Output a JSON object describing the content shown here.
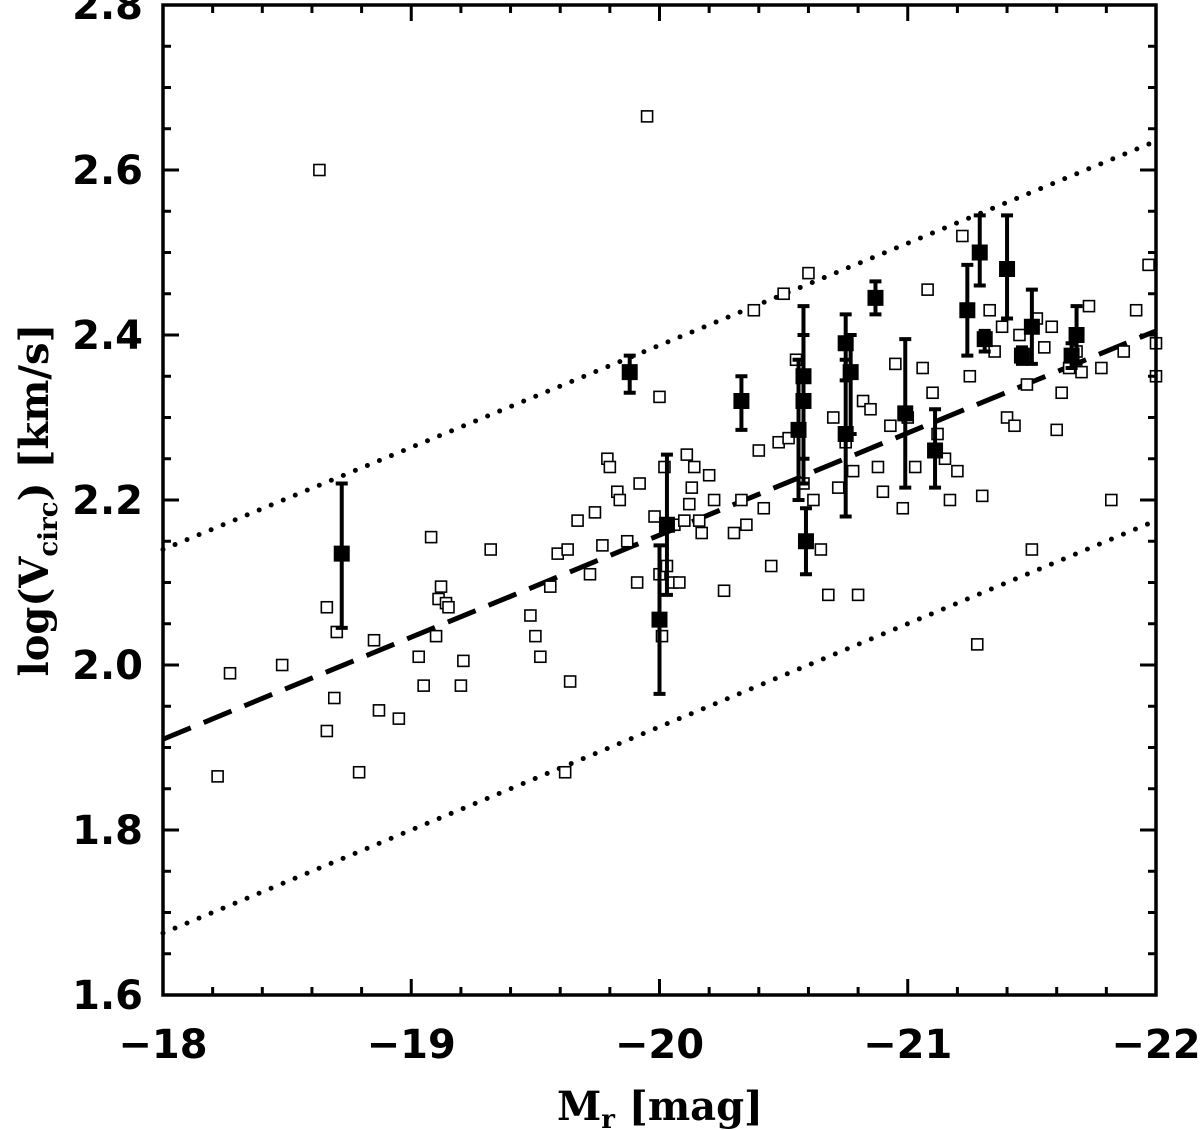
{
  "chart_data": {
    "type": "scatter",
    "title": "",
    "xlabel": {
      "main": "M",
      "sub": "r",
      "rest": " [mag]"
    },
    "ylabel": {
      "pre": "log(V",
      "sub": "circ",
      "post": ")  [km/s]"
    },
    "xlim": [
      -18,
      -22
    ],
    "ylim": [
      1.6,
      2.8
    ],
    "x_ticks": [
      -18,
      -19,
      -20,
      -21,
      -22
    ],
    "x_tick_labels": [
      "−18",
      "−19",
      "−20",
      "−21",
      "−22"
    ],
    "y_ticks": [
      1.6,
      1.8,
      2.0,
      2.2,
      2.4,
      2.6,
      2.8
    ],
    "y_tick_labels": [
      "1.6",
      "1.8",
      "2.0",
      "2.2",
      "2.4",
      "2.6",
      "2.8"
    ],
    "grid": false,
    "legend": "none",
    "series": [
      {
        "marker": "open-square",
        "points": [
          [
            -18.22,
            1.865
          ],
          [
            -18.27,
            1.99
          ],
          [
            -18.48,
            2.0
          ],
          [
            -18.63,
            2.6
          ],
          [
            -18.66,
            2.07
          ],
          [
            -18.66,
            1.92
          ],
          [
            -18.69,
            1.96
          ],
          [
            -18.7,
            2.04
          ],
          [
            -18.79,
            1.87
          ],
          [
            -18.85,
            2.03
          ],
          [
            -18.87,
            1.945
          ],
          [
            -18.95,
            1.935
          ],
          [
            -19.03,
            2.01
          ],
          [
            -19.05,
            1.975
          ],
          [
            -19.08,
            2.155
          ],
          [
            -19.1,
            2.035
          ],
          [
            -19.11,
            2.08
          ],
          [
            -19.12,
            2.095
          ],
          [
            -19.14,
            2.075
          ],
          [
            -19.15,
            2.07
          ],
          [
            -19.2,
            1.975
          ],
          [
            -19.21,
            2.005
          ],
          [
            -19.32,
            2.14
          ],
          [
            -19.48,
            2.06
          ],
          [
            -19.5,
            2.035
          ],
          [
            -19.52,
            2.01
          ],
          [
            -19.56,
            2.095
          ],
          [
            -19.59,
            2.135
          ],
          [
            -19.62,
            1.87
          ],
          [
            -19.63,
            2.14
          ],
          [
            -19.64,
            1.98
          ],
          [
            -19.67,
            2.175
          ],
          [
            -19.72,
            2.11
          ],
          [
            -19.74,
            2.185
          ],
          [
            -19.77,
            2.145
          ],
          [
            -19.79,
            2.25
          ],
          [
            -19.8,
            2.24
          ],
          [
            -19.83,
            2.21
          ],
          [
            -19.84,
            2.2
          ],
          [
            -19.87,
            2.15
          ],
          [
            -19.91,
            2.1
          ],
          [
            -19.92,
            2.22
          ],
          [
            -19.95,
            2.665
          ],
          [
            -19.98,
            2.18
          ],
          [
            -20.0,
            2.325
          ],
          [
            -20.0,
            2.11
          ],
          [
            -20.01,
            2.035
          ],
          [
            -20.02,
            2.24
          ],
          [
            -20.03,
            2.12
          ],
          [
            -20.05,
            2.1
          ],
          [
            -20.06,
            2.17
          ],
          [
            -20.08,
            2.1
          ],
          [
            -20.1,
            2.175
          ],
          [
            -20.11,
            2.255
          ],
          [
            -20.12,
            2.195
          ],
          [
            -20.13,
            2.215
          ],
          [
            -20.14,
            2.24
          ],
          [
            -20.16,
            2.175
          ],
          [
            -20.17,
            2.16
          ],
          [
            -20.2,
            2.23
          ],
          [
            -20.22,
            2.2
          ],
          [
            -20.26,
            2.09
          ],
          [
            -20.3,
            2.16
          ],
          [
            -20.33,
            2.2
          ],
          [
            -20.35,
            2.17
          ],
          [
            -20.38,
            2.43
          ],
          [
            -20.4,
            2.26
          ],
          [
            -20.42,
            2.19
          ],
          [
            -20.45,
            2.12
          ],
          [
            -20.48,
            2.27
          ],
          [
            -20.5,
            2.45
          ],
          [
            -20.52,
            2.275
          ],
          [
            -20.55,
            2.37
          ],
          [
            -20.58,
            2.22
          ],
          [
            -20.6,
            2.475
          ],
          [
            -20.62,
            2.2
          ],
          [
            -20.65,
            2.14
          ],
          [
            -20.68,
            2.085
          ],
          [
            -20.7,
            2.3
          ],
          [
            -20.72,
            2.215
          ],
          [
            -20.75,
            2.27
          ],
          [
            -20.78,
            2.235
          ],
          [
            -20.8,
            2.085
          ],
          [
            -20.82,
            2.32
          ],
          [
            -20.85,
            2.31
          ],
          [
            -20.88,
            2.24
          ],
          [
            -20.9,
            2.21
          ],
          [
            -20.93,
            2.29
          ],
          [
            -20.95,
            2.365
          ],
          [
            -20.98,
            2.19
          ],
          [
            -21.0,
            2.3
          ],
          [
            -21.03,
            2.24
          ],
          [
            -21.06,
            2.36
          ],
          [
            -21.08,
            2.455
          ],
          [
            -21.1,
            2.33
          ],
          [
            -21.12,
            2.28
          ],
          [
            -21.15,
            2.25
          ],
          [
            -21.17,
            2.2
          ],
          [
            -21.2,
            2.235
          ],
          [
            -21.22,
            2.52
          ],
          [
            -21.25,
            2.35
          ],
          [
            -21.28,
            2.025
          ],
          [
            -21.3,
            2.205
          ],
          [
            -21.33,
            2.43
          ],
          [
            -21.35,
            2.38
          ],
          [
            -21.38,
            2.41
          ],
          [
            -21.4,
            2.3
          ],
          [
            -21.43,
            2.29
          ],
          [
            -21.45,
            2.4
          ],
          [
            -21.48,
            2.34
          ],
          [
            -21.5,
            2.14
          ],
          [
            -21.52,
            2.42
          ],
          [
            -21.55,
            2.385
          ],
          [
            -21.58,
            2.41
          ],
          [
            -21.6,
            2.285
          ],
          [
            -21.62,
            2.33
          ],
          [
            -21.65,
            2.36
          ],
          [
            -21.68,
            2.38
          ],
          [
            -21.7,
            2.355
          ],
          [
            -21.73,
            2.435
          ],
          [
            -21.78,
            2.36
          ],
          [
            -21.82,
            2.2
          ],
          [
            -21.87,
            2.38
          ],
          [
            -21.92,
            2.43
          ],
          [
            -21.97,
            2.485
          ],
          [
            -22.0,
            2.39
          ],
          [
            -22.0,
            2.35
          ]
        ]
      },
      {
        "marker": "filled-square",
        "points": [
          {
            "x": -18.72,
            "y": 2.135,
            "lo": 2.045,
            "hi": 2.22
          },
          {
            "x": -19.88,
            "y": 2.355,
            "lo": 2.33,
            "hi": 2.375
          },
          {
            "x": -20.0,
            "y": 2.055,
            "lo": 1.965,
            "hi": 2.145
          },
          {
            "x": -20.03,
            "y": 2.17,
            "lo": 2.085,
            "hi": 2.255
          },
          {
            "x": -20.33,
            "y": 2.32,
            "lo": 2.285,
            "hi": 2.35
          },
          {
            "x": -20.56,
            "y": 2.285,
            "lo": 2.2,
            "hi": 2.37
          },
          {
            "x": -20.58,
            "y": 2.35,
            "lo": 2.25,
            "hi": 2.435
          },
          {
            "x": -20.58,
            "y": 2.32,
            "lo": 2.22,
            "hi": 2.4
          },
          {
            "x": -20.59,
            "y": 2.15,
            "lo": 2.11,
            "hi": 2.19
          },
          {
            "x": -20.75,
            "y": 2.39,
            "lo": 2.345,
            "hi": 2.425
          },
          {
            "x": -20.75,
            "y": 2.28,
            "lo": 2.18,
            "hi": 2.37
          },
          {
            "x": -20.77,
            "y": 2.355,
            "lo": 2.28,
            "hi": 2.4
          },
          {
            "x": -20.87,
            "y": 2.445,
            "lo": 2.425,
            "hi": 2.465
          },
          {
            "x": -20.99,
            "y": 2.305,
            "lo": 2.215,
            "hi": 2.395
          },
          {
            "x": -21.11,
            "y": 2.26,
            "lo": 2.215,
            "hi": 2.31
          },
          {
            "x": -21.24,
            "y": 2.43,
            "lo": 2.375,
            "hi": 2.485
          },
          {
            "x": -21.29,
            "y": 2.5,
            "lo": 2.46,
            "hi": 2.545
          },
          {
            "x": -21.31,
            "y": 2.395,
            "lo": 2.38,
            "hi": 2.405
          },
          {
            "x": -21.4,
            "y": 2.48,
            "lo": 2.42,
            "hi": 2.545
          },
          {
            "x": -21.46,
            "y": 2.375,
            "lo": 2.365,
            "hi": 2.385
          },
          {
            "x": -21.5,
            "y": 2.41,
            "lo": 2.365,
            "hi": 2.455
          },
          {
            "x": -21.66,
            "y": 2.375,
            "lo": 2.36,
            "hi": 2.39
          },
          {
            "x": -21.68,
            "y": 2.4,
            "lo": 2.365,
            "hi": 2.435
          }
        ]
      }
    ],
    "lines": [
      {
        "style": "dashed",
        "x": [
          -18,
          -22
        ],
        "y": [
          1.91,
          2.405
        ]
      },
      {
        "style": "dotted",
        "x": [
          -18,
          -22
        ],
        "y": [
          2.14,
          2.635
        ]
      },
      {
        "style": "dotted",
        "x": [
          -18,
          -22
        ],
        "y": [
          1.675,
          2.175
        ]
      }
    ]
  }
}
